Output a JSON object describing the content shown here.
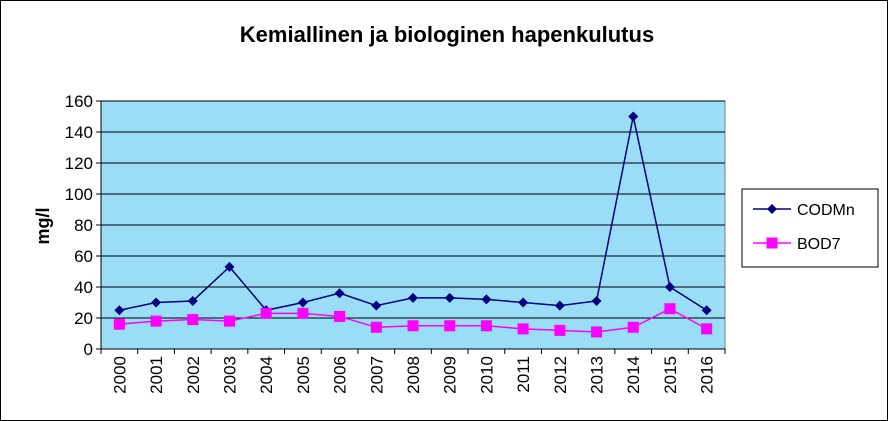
{
  "chart_data": {
    "type": "line",
    "title": "Kemiallinen ja biologinen hapenkulutus",
    "xlabel": "",
    "ylabel": "mg/l",
    "ylim": [
      0,
      160
    ],
    "yticks": [
      0,
      20,
      40,
      60,
      80,
      100,
      120,
      140,
      160
    ],
    "grid": true,
    "legend_position": "right",
    "plot_background": "#99DDF7",
    "categories": [
      "2000",
      "2001",
      "2002",
      "2003",
      "2004",
      "2005",
      "2006",
      "2007",
      "2008",
      "2009",
      "2010",
      "2011",
      "2012",
      "2013",
      "2014",
      "2015",
      "2016"
    ],
    "series": [
      {
        "name": "CODMn",
        "color": "#000080",
        "marker": "diamond",
        "values": [
          25,
          30,
          31,
          53,
          25,
          30,
          36,
          28,
          33,
          33,
          32,
          30,
          28,
          31,
          150,
          40,
          25
        ]
      },
      {
        "name": "BOD7",
        "color": "#FF00FF",
        "marker": "square",
        "values": [
          16,
          18,
          19,
          18,
          23,
          23,
          21,
          14,
          15,
          15,
          15,
          13,
          12,
          11,
          14,
          26,
          13
        ]
      }
    ]
  }
}
